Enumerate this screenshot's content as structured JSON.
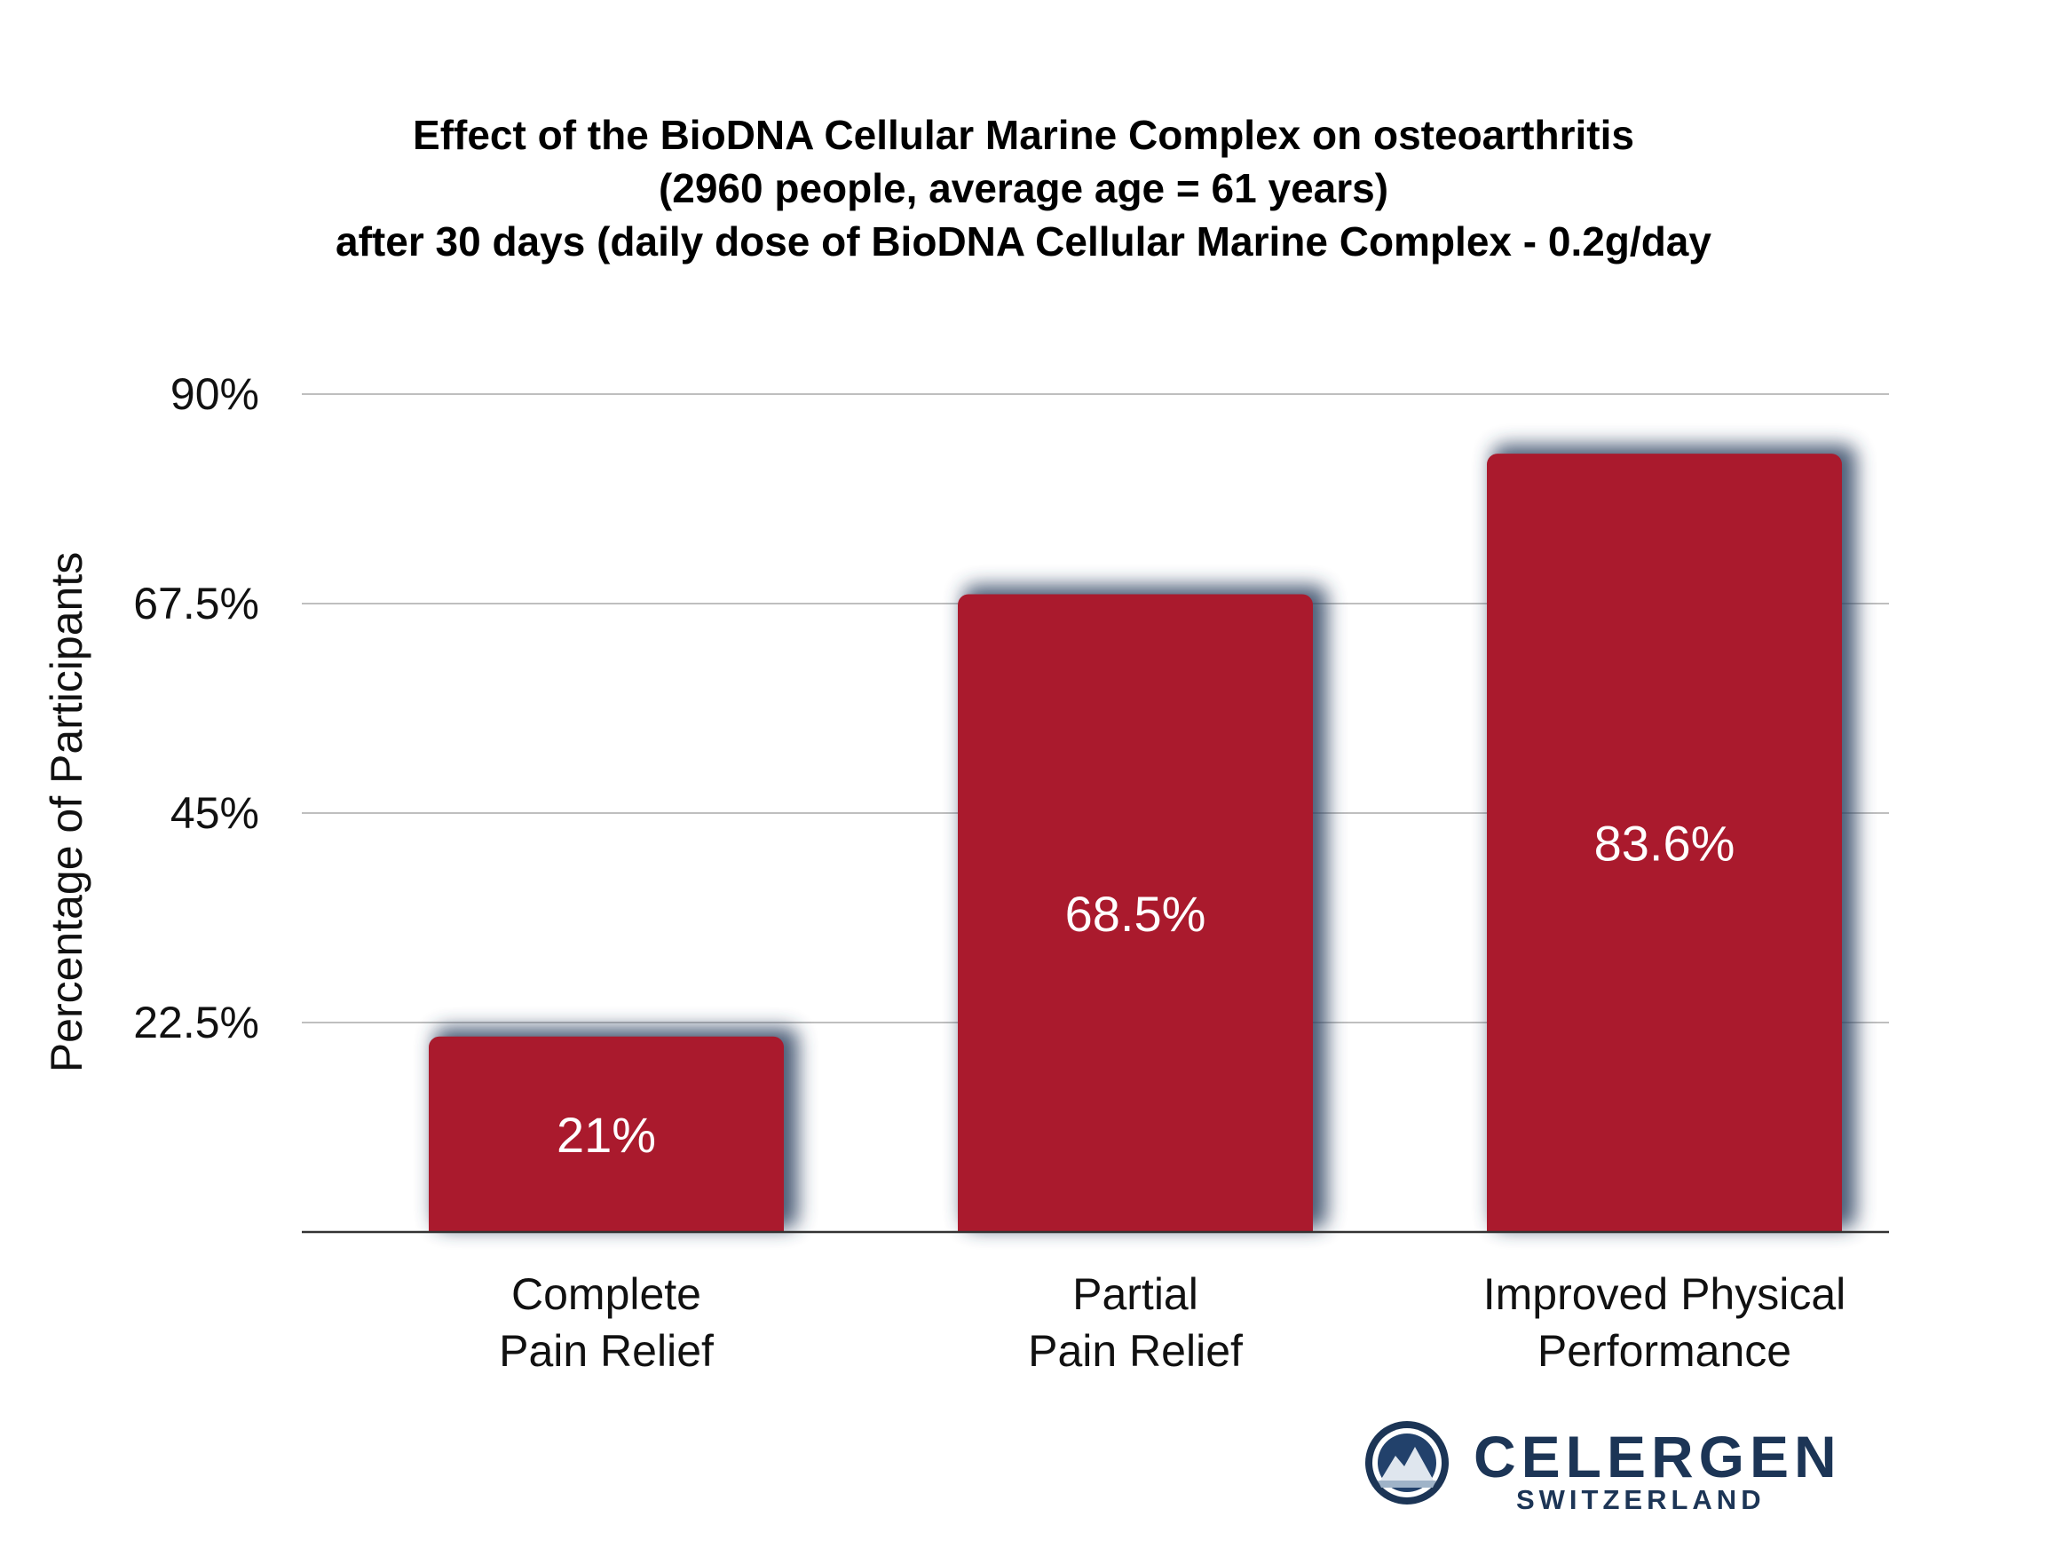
{
  "chart_data": {
    "type": "bar",
    "title_lines": [
      "Effect of the BioDNA Cellular Marine Complex on osteoarthritis",
      "(2960 people, average age = 61 years)",
      "after 30 days (daily dose of BioDNA Cellular Marine Complex - 0.2g/day"
    ],
    "ylabel": "Percentage of Participants",
    "xlabel": "",
    "ylim": [
      0,
      90
    ],
    "yticks": [
      22.5,
      45,
      67.5,
      90
    ],
    "ytick_labels": [
      "22.5%",
      "45%",
      "67.5%",
      "90%"
    ],
    "categories": [
      [
        "Complete",
        "Pain Relief"
      ],
      [
        "Partial",
        "Pain Relief"
      ],
      [
        "Improved Physical",
        "Performance"
      ]
    ],
    "values": [
      21,
      68.5,
      83.6
    ],
    "value_labels": [
      "21%",
      "68.5%",
      "83.6%"
    ],
    "bar_color": "#aa1a2d",
    "shadow_color": "#2a3f5f",
    "grid": true,
    "legend": "none"
  },
  "logo": {
    "name": "CELERGEN",
    "subtitle": "SWITZERLAND",
    "accent_color": "#c8102e",
    "brand_color": "#1c3556",
    "icon": "mountain-globe-icon"
  }
}
